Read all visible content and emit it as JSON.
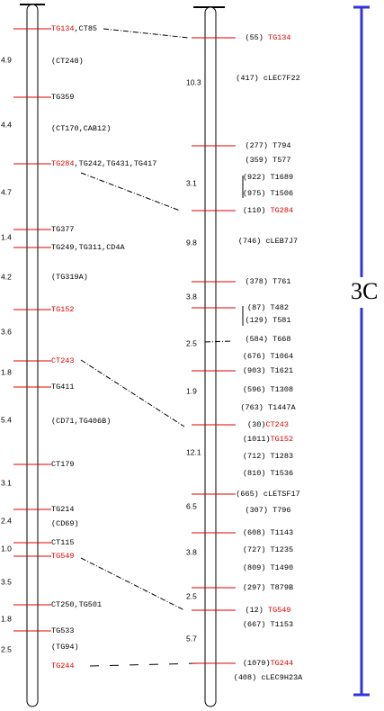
{
  "highlight_color": "#e00000",
  "left_chromosome": {
    "markers": [
      {
        "highlight": "TG134",
        "suffix": ",CT85"
      },
      {
        "text": "(CT248)"
      },
      {
        "text": "TG359"
      },
      {
        "text": "(CT170,CAB12)"
      },
      {
        "highlight": "TG284",
        "suffix": ",TG242,TG431,TG417"
      },
      {
        "text": "TG377"
      },
      {
        "text": "TG249,TG311,CD4A"
      },
      {
        "text": "(TG319A)"
      },
      {
        "highlight": "TG152"
      },
      {
        "highlight": "CT243"
      },
      {
        "text": "TG411"
      },
      {
        "text": "(CD71,TG406B)"
      },
      {
        "text": "CT179"
      },
      {
        "text": "TG214"
      },
      {
        "text": "(CD69)"
      },
      {
        "text": "CT115"
      },
      {
        "highlight": "TG549"
      },
      {
        "text": "CT250,TG501"
      },
      {
        "text": "TG533"
      },
      {
        "text": "(TG94)"
      },
      {
        "highlight": "TG244"
      }
    ],
    "distances": [
      "4.9",
      "4.4",
      "4.7",
      "1.4",
      "4.2",
      "3.6",
      "1.8",
      "5.4",
      "3.1",
      "2.4",
      "1.0",
      "3.5",
      "1.8",
      "2.5"
    ]
  },
  "right_chromosome": {
    "markers": [
      {
        "prefix": "(55) ",
        "highlight": "TG134"
      },
      {
        "text": "(417) cLEC7F22"
      },
      {
        "text": "(277) T794"
      },
      {
        "text": "(359) T577"
      },
      {
        "text": "(922) T1689"
      },
      {
        "text": "(975) T1506"
      },
      {
        "prefix": "(110) ",
        "highlight": "TG284"
      },
      {
        "text": "(746) cLEB7J7"
      },
      {
        "text": "(378) T761"
      },
      {
        "text": "(87) T482"
      },
      {
        "text": "(129) T581"
      },
      {
        "text": "(584) T668"
      },
      {
        "text": "(676) T1064"
      },
      {
        "text": "(903) T1621"
      },
      {
        "text": "(596) T1308"
      },
      {
        "text": "(763) T1447A"
      },
      {
        "prefix": "(30)",
        "highlight": "CT243"
      },
      {
        "prefix": "(1011)",
        "highlight": "TG152"
      },
      {
        "text": "(712) T1283"
      },
      {
        "text": "(810) T1536"
      },
      {
        "text": "(665) cLETSF17"
      },
      {
        "text": "(307) T796"
      },
      {
        "text": "(608) T1143"
      },
      {
        "text": "(727) T1235"
      },
      {
        "text": "(809) T1490"
      },
      {
        "text": "(297) T879B"
      },
      {
        "prefix": "(12) ",
        "highlight": "TG549"
      },
      {
        "text": "(667) T1153"
      },
      {
        "prefix": "(1079)",
        "highlight": "TG244"
      },
      {
        "text": "(408) cLEC9H23A"
      }
    ],
    "distances": [
      "10.3",
      "3.1",
      "9.8",
      "3.8",
      "2.5",
      "1.9",
      "12.1",
      "6.5",
      "3.8",
      "2.5",
      "5.7"
    ]
  },
  "scale_label": "3C"
}
